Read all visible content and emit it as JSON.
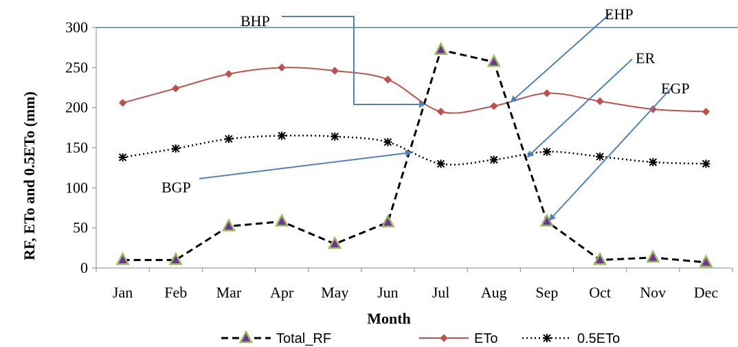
{
  "chart_data": {
    "type": "line",
    "title": "",
    "xlabel": "Month",
    "ylabel": "RF, ETo and 0.5ETo (mm)",
    "categories": [
      "Jan",
      "Feb",
      "Mar",
      "Apr",
      "May",
      "Jun",
      "Jul",
      "Aug",
      "Sep",
      "Oct",
      "Nov",
      "Dec"
    ],
    "ylim": [
      0,
      300
    ],
    "yticks": [
      0,
      50,
      100,
      150,
      200,
      250,
      300
    ],
    "grid": false,
    "legend_position": "bottom",
    "series": [
      {
        "name": "Total_RF",
        "values": [
          10,
          10,
          52,
          58,
          30,
          57,
          272,
          257,
          58,
          10,
          13,
          7
        ],
        "color": "#000000",
        "line_style": "dashed",
        "marker": "triangle",
        "marker_fill": "#7030a0",
        "marker_stroke": "#9bbb59"
      },
      {
        "name": "ETo",
        "values": [
          206,
          224,
          242,
          250,
          246,
          235,
          195,
          202,
          218,
          208,
          198,
          195
        ],
        "color": "#c0504d",
        "line_style": "solid",
        "marker": "diamond"
      },
      {
        "name": "0.5ETo",
        "values": [
          138,
          149,
          161,
          165,
          164,
          157,
          130,
          135,
          145,
          139,
          132,
          130
        ],
        "color": "#000000",
        "line_style": "dotted",
        "marker": "asterisk"
      }
    ],
    "annotations": [
      {
        "label": "BHP"
      },
      {
        "label": "EHP"
      },
      {
        "label": "ER"
      },
      {
        "label": "EGP"
      },
      {
        "label": "BGP"
      }
    ],
    "arrow_color": "#4f81bd"
  }
}
